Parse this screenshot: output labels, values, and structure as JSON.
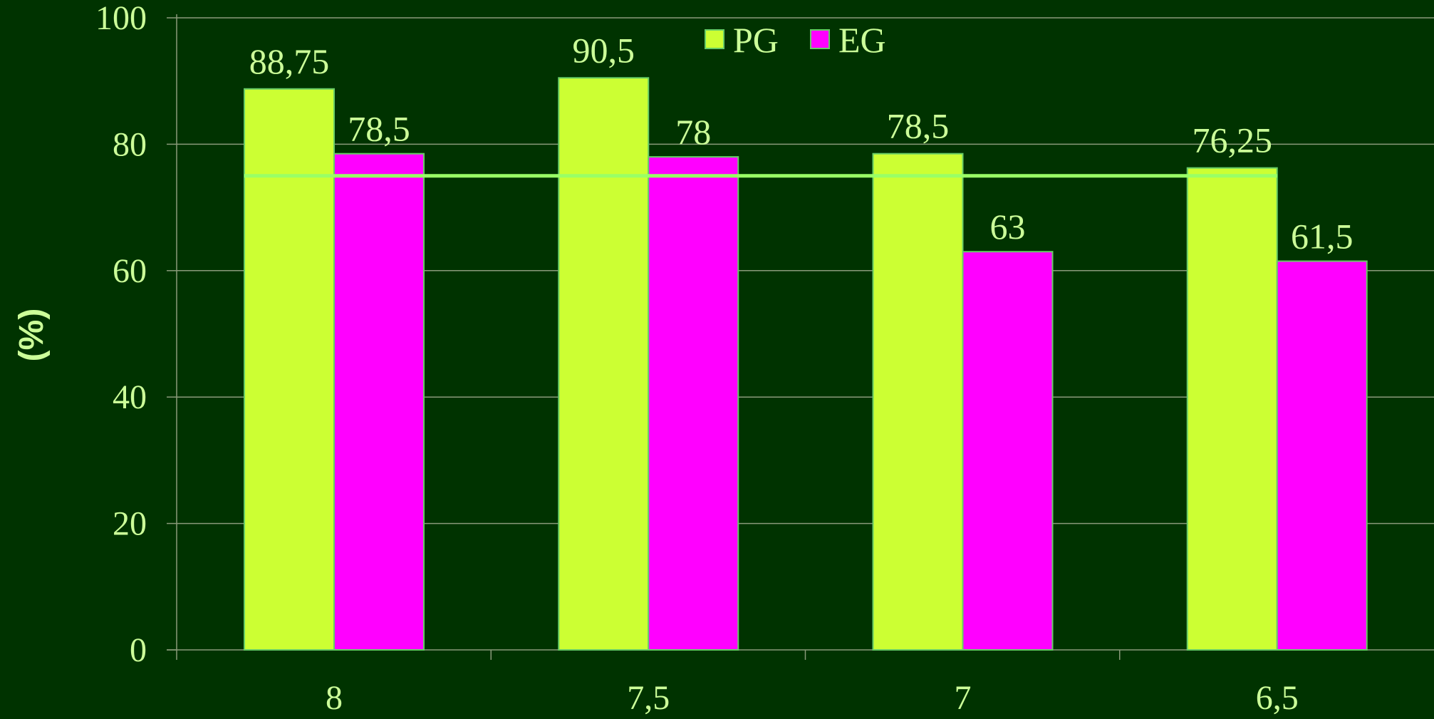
{
  "chart_data": {
    "type": "bar",
    "title": "",
    "xlabel": "",
    "ylabel": "(%)",
    "ylim": [
      0,
      100
    ],
    "yticks": [
      "0",
      "20",
      "40",
      "60",
      "80",
      "100"
    ],
    "categories": [
      "8",
      "7,5",
      "7",
      "6,5"
    ],
    "series": [
      {
        "name": "PG",
        "values": [
          88.75,
          90.5,
          78.5,
          76.25
        ],
        "labels": [
          "88,75",
          "90,5",
          "78,5",
          "76,25"
        ],
        "color": "#CCFF33"
      },
      {
        "name": "EG",
        "values": [
          78.5,
          78,
          63,
          61.5
        ],
        "labels": [
          "78,5",
          "78",
          "63",
          "61,5"
        ],
        "color": "#FF00FF"
      }
    ],
    "reference_line": {
      "value": 75,
      "color": "#99FF66"
    },
    "legend": {
      "position": "top-center"
    },
    "grid": true,
    "colors": {
      "background": "#003300",
      "text": "#CCFF99",
      "axis": "#8A9A7A",
      "bar_border": "#66CC66"
    }
  }
}
